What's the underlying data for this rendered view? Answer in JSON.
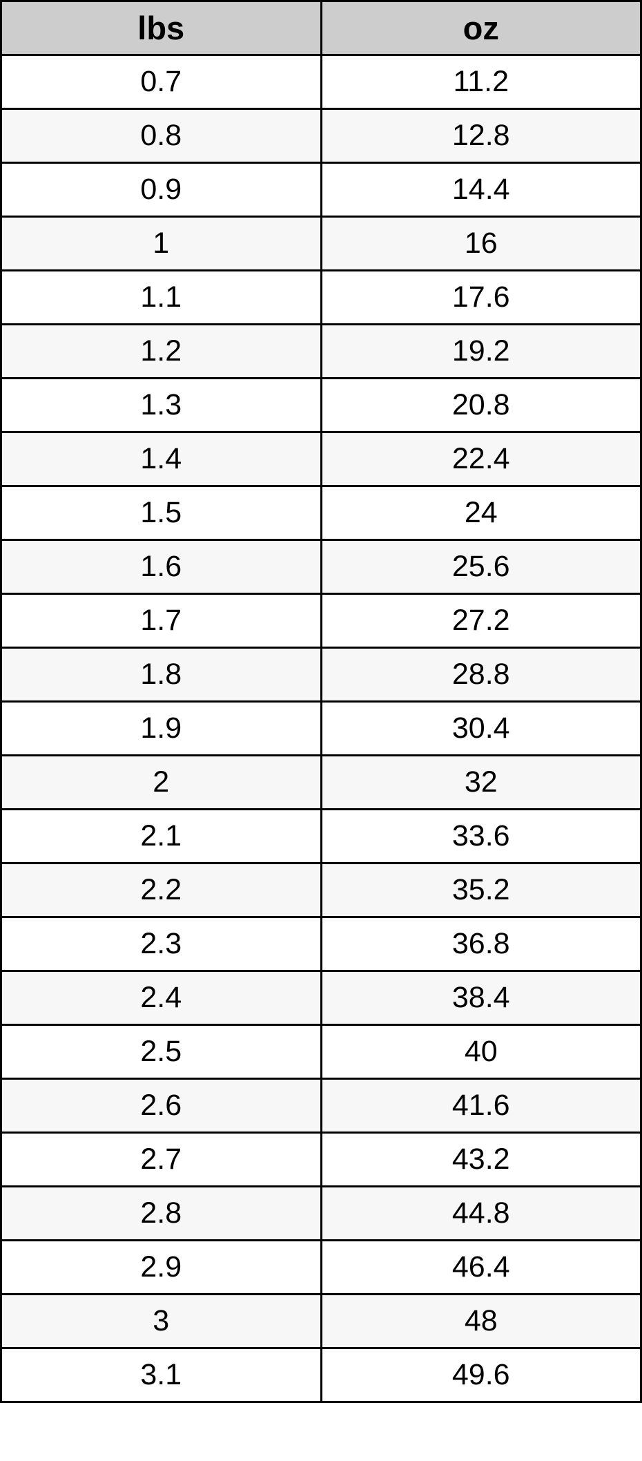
{
  "colors": {
    "header_bg": "#cdcdcd",
    "row_bg": "#ffffff",
    "row_alt_bg": "#f7f7f7",
    "border": "#000000",
    "text": "#000000"
  },
  "chart_data": {
    "type": "table",
    "columns": [
      "lbs",
      "oz"
    ],
    "rows": [
      [
        0.7,
        11.2
      ],
      [
        0.8,
        12.8
      ],
      [
        0.9,
        14.4
      ],
      [
        1,
        16
      ],
      [
        1.1,
        17.6
      ],
      [
        1.2,
        19.2
      ],
      [
        1.3,
        20.8
      ],
      [
        1.4,
        22.4
      ],
      [
        1.5,
        24
      ],
      [
        1.6,
        25.6
      ],
      [
        1.7,
        27.2
      ],
      [
        1.8,
        28.8
      ],
      [
        1.9,
        30.4
      ],
      [
        2,
        32
      ],
      [
        2.1,
        33.6
      ],
      [
        2.2,
        35.2
      ],
      [
        2.3,
        36.8
      ],
      [
        2.4,
        38.4
      ],
      [
        2.5,
        40
      ],
      [
        2.6,
        41.6
      ],
      [
        2.7,
        43.2
      ],
      [
        2.8,
        44.8
      ],
      [
        2.9,
        46.4
      ],
      [
        3,
        48
      ],
      [
        3.1,
        49.6
      ]
    ],
    "layout": {
      "grid": true,
      "conversion_factor": 16,
      "alternating_row_shading": true
    }
  }
}
